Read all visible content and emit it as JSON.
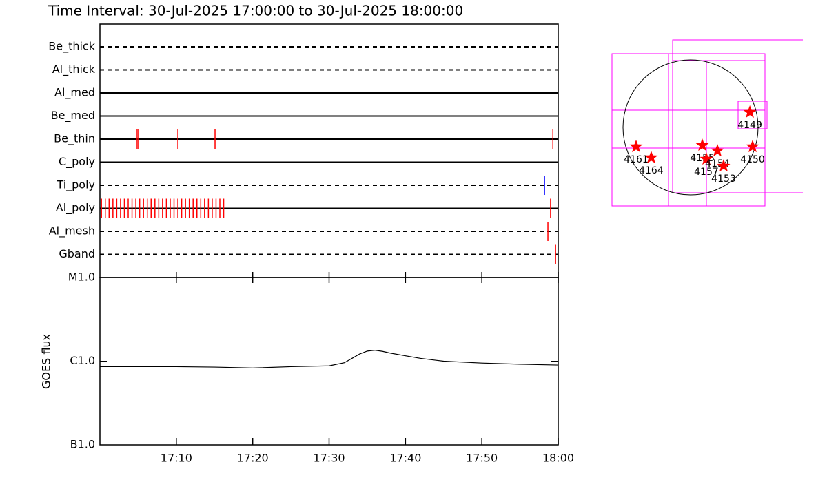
{
  "chart_data": [
    {
      "type": "timeline",
      "title": "Time Interval: 30-Jul-2025 17:00:00 to 30-Jul-2025 18:00:00",
      "categories": [
        "Be_thick",
        "Al_thick",
        "Al_med",
        "Be_med",
        "Be_thin",
        "C_poly",
        "Ti_poly",
        "Al_poly",
        "Al_mesh",
        "Gband"
      ],
      "line_styles": [
        "dashed",
        "dashed",
        "solid",
        "solid",
        "solid",
        "solid",
        "dashed",
        "solid",
        "dashed",
        "dashed"
      ],
      "xlim": [
        0,
        60
      ],
      "events": [
        null,
        null,
        null,
        null,
        {
          "t": [
            4.87,
            5.05,
            10.2,
            15.07,
            59.3
          ],
          "color": "#ff0000"
        },
        null,
        {
          "t": [
            58.2
          ],
          "color": "#0000ff"
        },
        {
          "t": [
            0.2,
            0.7,
            1.2,
            1.7,
            2.2,
            2.7,
            3.2,
            3.7,
            4.2,
            4.7,
            5.2,
            5.7,
            6.2,
            6.7,
            7.2,
            7.7,
            8.2,
            8.7,
            9.2,
            9.7,
            10.2,
            10.7,
            11.2,
            11.7,
            12.2,
            12.7,
            13.2,
            13.7,
            14.2,
            14.7,
            15.2,
            15.7,
            16.2,
            59.0
          ],
          "color": "#ff0000"
        },
        {
          "t": [
            58.65
          ],
          "color": "#ff0000"
        },
        {
          "t": [
            59.65
          ],
          "color": "#ff0000"
        }
      ]
    },
    {
      "type": "line",
      "ylabel": "GOES flux",
      "log_scale": true,
      "xlim": [
        0,
        60
      ],
      "xticks": [
        {
          "value": 10,
          "label": "17:10"
        },
        {
          "value": 20,
          "label": "17:20"
        },
        {
          "value": 30,
          "label": "17:30"
        },
        {
          "value": 40,
          "label": "17:40"
        },
        {
          "value": 50,
          "label": "17:50"
        },
        {
          "value": 60,
          "label": "18:00"
        }
      ],
      "ylim": [
        1e-07,
        1e-05
      ],
      "yticks": [
        {
          "value": 1e-07,
          "label": "B1.0"
        },
        {
          "value": 1e-06,
          "label": "C1.0"
        },
        {
          "value": 1e-05,
          "label": "M1.0"
        }
      ],
      "x": [
        0,
        5,
        10,
        15,
        20,
        25,
        30,
        32,
        33,
        34,
        35,
        36,
        37,
        38,
        40,
        42,
        45,
        50,
        55,
        60
      ],
      "values": [
        8.6e-07,
        8.6e-07,
        8.6e-07,
        8.5e-07,
        8.3e-07,
        8.6e-07,
        8.8e-07,
        9.6e-07,
        1.08e-06,
        1.22e-06,
        1.32e-06,
        1.35e-06,
        1.31e-06,
        1.25e-06,
        1.16e-06,
        1.08e-06,
        1e-06,
        9.5e-07,
        9.2e-07,
        9e-07
      ],
      "color": "#000000"
    },
    {
      "type": "map",
      "radius": 960,
      "labels": [
        "4161",
        "4164",
        "4155",
        "4157",
        "4154",
        "4153",
        "4150",
        "4149"
      ],
      "x": [
        -774,
        -559,
        167,
        225,
        382,
        470,
        882,
        843
      ],
      "y": [
        -274,
        -431,
        -255,
        -451,
        -333,
        -549,
        -274,
        216
      ],
      "color": "#ff0000"
    }
  ]
}
